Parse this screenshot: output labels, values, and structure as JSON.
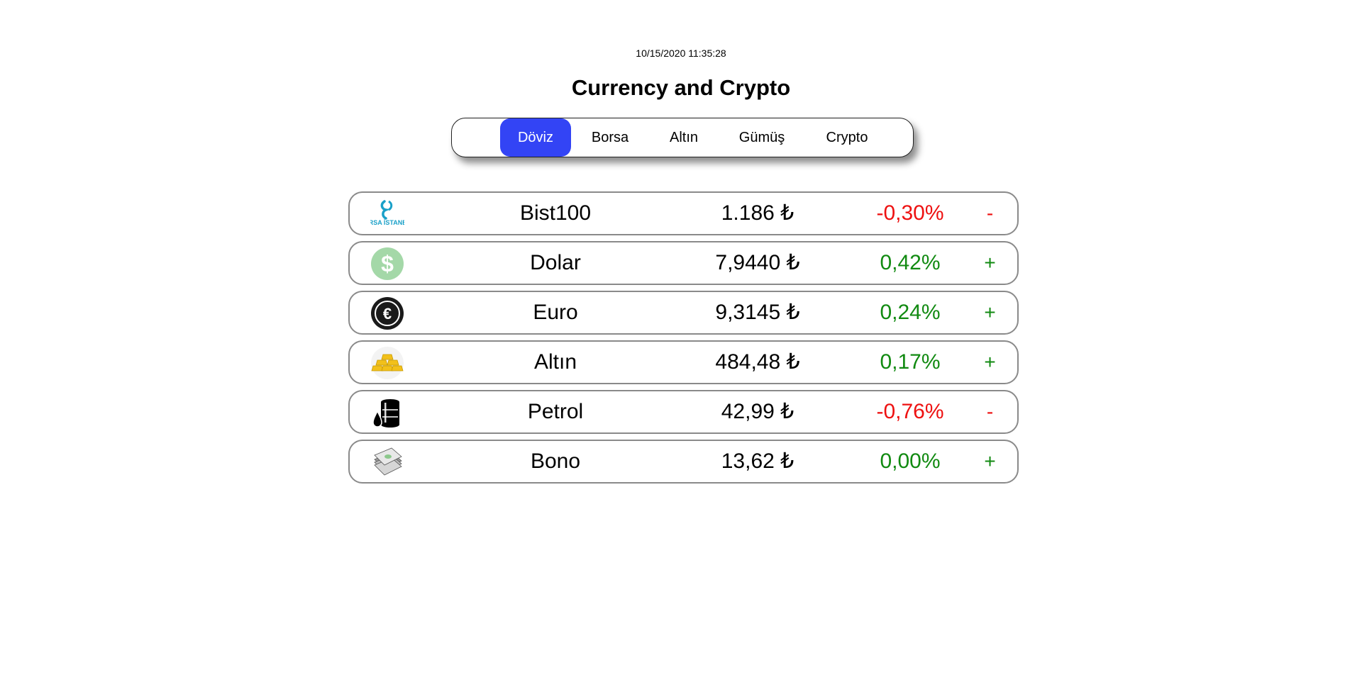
{
  "header": {
    "timestamp": "10/15/2020 11:35:28",
    "title": "Currency and Crypto"
  },
  "tabs": [
    {
      "label": "Döviz",
      "active": true
    },
    {
      "label": "Borsa",
      "active": false
    },
    {
      "label": "Altın",
      "active": false
    },
    {
      "label": "Gümüş",
      "active": false
    },
    {
      "label": "Crypto",
      "active": false
    }
  ],
  "accent_color": "#3344f5",
  "positive_color": "#118a11",
  "negative_color": "#ee1111",
  "rows": [
    {
      "icon": "borsa-istanbul-logo",
      "logo_text": "BORSA İSTANBUL",
      "name": "Bist100",
      "price": "1.186 ₺",
      "change": "-0,30%",
      "sign": "-",
      "direction": "down"
    },
    {
      "icon": "dollar-icon",
      "name": "Dolar",
      "price": "7,9440 ₺",
      "change": "0,42%",
      "sign": "+",
      "direction": "up"
    },
    {
      "icon": "euro-icon",
      "name": "Euro",
      "price": "9,3145 ₺",
      "change": "0,24%",
      "sign": "+",
      "direction": "up"
    },
    {
      "icon": "gold-bars-icon",
      "name": "Altın",
      "price": "484,48 ₺",
      "change": "0,17%",
      "sign": "+",
      "direction": "up"
    },
    {
      "icon": "oil-barrel-icon",
      "name": "Petrol",
      "price": "42,99 ₺",
      "change": "-0,76%",
      "sign": "-",
      "direction": "down"
    },
    {
      "icon": "bond-papers-icon",
      "name": "Bono",
      "price": "13,62 ₺",
      "change": "0,00%",
      "sign": "+",
      "direction": "up"
    }
  ]
}
